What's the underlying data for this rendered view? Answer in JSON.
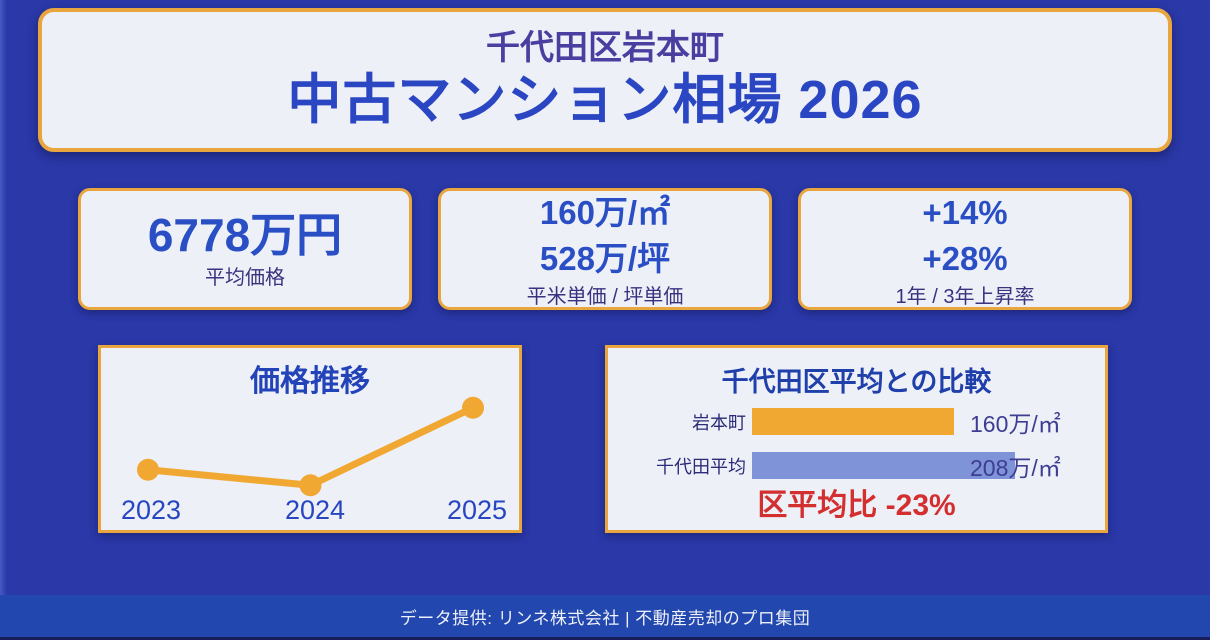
{
  "header": {
    "region": "千代田区岩本町",
    "title": "中古マンション相場 2026"
  },
  "stats": [
    {
      "values": [
        "6778万円"
      ],
      "label": "平均価格"
    },
    {
      "values": [
        "160万/㎡",
        "528万/坪"
      ],
      "label": "平米単価 / 坪単価"
    },
    {
      "values": [
        "+14%",
        "+28%"
      ],
      "label": "1年 / 3年上昇率"
    }
  ],
  "chart_data": [
    {
      "type": "line",
      "title": "価格推移",
      "categories": [
        "2023",
        "2024",
        "2025"
      ],
      "values": [
        144,
        140,
        160
      ],
      "unit": "万/㎡",
      "ylim": [
        138,
        162
      ],
      "grid": false,
      "legend": false,
      "line_color": "#f0a832",
      "point_color": "#f0a832"
    },
    {
      "type": "bar",
      "title": "千代田区平均との比較",
      "orientation": "horizontal",
      "categories": [
        "岩本町",
        "千代田平均"
      ],
      "values": [
        160,
        208
      ],
      "value_labels": [
        "160万/㎡",
        "208万/㎡"
      ],
      "unit": "万/㎡",
      "xlim": [
        0,
        208
      ],
      "bar_colors": [
        "#f0a832",
        "#7e93d8"
      ],
      "note": "区平均比 -23%",
      "note_color": "#d32f2f",
      "grid": false,
      "legend": false
    }
  ],
  "footer": {
    "text": "データ提供: リンネ株式会社 | 不動産売却のプロ集団"
  },
  "colors": {
    "background": "#2a38a8",
    "footer_band": "#2247ae",
    "card_background": "#eef0f8",
    "card_border": "#e9a63f",
    "primary_blue": "#2a4fc5",
    "header_region_purple": "#4a3fa0",
    "navy_label": "#39337f",
    "accent_orange": "#f0a832",
    "accent_periwinkle": "#7e93d8",
    "negative_red": "#d32f2f"
  }
}
